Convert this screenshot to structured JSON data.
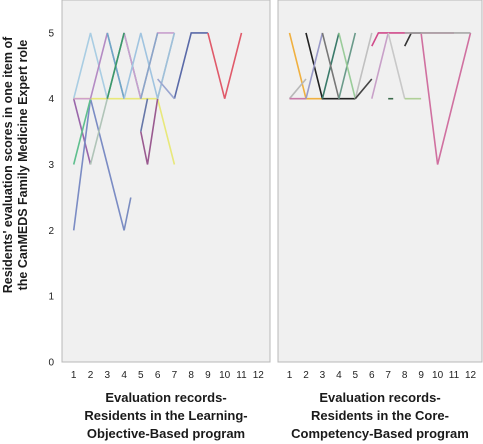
{
  "ylabel_lines": [
    "Residents' evaluation scores in one item of",
    "the CanMEDS Family Medicine Expert role"
  ],
  "chart_data": [
    {
      "type": "line",
      "panel_title_lines": [
        "Evaluation records-",
        "Residents in the Learning-",
        "Objective-Based program"
      ],
      "x_ticks": [
        1,
        2,
        3,
        4,
        5,
        6,
        7,
        8,
        9,
        10,
        11,
        12
      ],
      "y_ticks": [
        0,
        1,
        2,
        3,
        4,
        5
      ],
      "xlim": [
        0.3,
        12.7
      ],
      "ylim": [
        0,
        5.5
      ],
      "grid": false,
      "series": [
        {
          "color": "#a9cde3",
          "x": [
            1,
            2,
            3
          ],
          "y": [
            4,
            5,
            4
          ]
        },
        {
          "color": "#9966aa",
          "x": [
            1,
            2
          ],
          "y": [
            4,
            3
          ]
        },
        {
          "color": "#7b8cc4",
          "x": [
            1,
            2,
            3,
            4
          ],
          "y": [
            2,
            4,
            3,
            2
          ]
        },
        {
          "color": "#5fbf8e",
          "x": [
            1,
            2
          ],
          "y": [
            3,
            4
          ]
        },
        {
          "color": "#e8e87a",
          "x": [
            1,
            2,
            3,
            4,
            5,
            6,
            7
          ],
          "y": [
            4,
            4,
            4,
            4,
            4,
            4,
            3
          ]
        },
        {
          "color": "#cfa0c8",
          "x": [
            1,
            2
          ],
          "y": [
            4,
            4
          ]
        },
        {
          "color": "#b48bc4",
          "x": [
            2,
            3,
            4
          ],
          "y": [
            4,
            5,
            4
          ]
        },
        {
          "color": "#b0c4b8",
          "x": [
            2,
            3
          ],
          "y": [
            3,
            4
          ]
        },
        {
          "color": "#6fb8b0",
          "x": [
            3,
            4,
            5
          ],
          "y": [
            4,
            5,
            4
          ]
        },
        {
          "color": "#c8a0ce",
          "x": [
            3,
            4,
            5,
            6,
            7
          ],
          "y": [
            4,
            5,
            4,
            5,
            5
          ]
        },
        {
          "color": "#6fa8c8",
          "x": [
            3,
            4
          ],
          "y": [
            5,
            4
          ]
        },
        {
          "color": "#7a8cc0",
          "x": [
            4,
            4.4
          ],
          "y": [
            2,
            2.5
          ]
        },
        {
          "color": "#3a9a6a",
          "x": [
            3,
            4
          ],
          "y": [
            4,
            5
          ]
        },
        {
          "color": "#6677a8",
          "x": [
            5,
            5.4
          ],
          "y": [
            3.5,
            4
          ]
        },
        {
          "color": "#9a5a90",
          "x": [
            5,
            5.4,
            6
          ],
          "y": [
            3.5,
            3,
            4
          ]
        },
        {
          "color": "#a0c4e0",
          "x": [
            4,
            5,
            6,
            7
          ],
          "y": [
            4,
            5,
            4,
            5
          ]
        },
        {
          "color": "#8aa6c8",
          "x": [
            5,
            6
          ],
          "y": [
            4,
            5
          ]
        },
        {
          "color": "#5a6aa8",
          "x": [
            7,
            8,
            9
          ],
          "y": [
            4,
            5,
            5
          ]
        },
        {
          "color": "#a0c0d8",
          "x": [
            6,
            7
          ],
          "y": [
            4,
            5
          ]
        },
        {
          "color": "#9aa6d0",
          "x": [
            6,
            7
          ],
          "y": [
            4.3,
            4
          ]
        },
        {
          "color": "#e05a6a",
          "x": [
            9,
            10,
            11
          ],
          "y": [
            5,
            4,
            5
          ]
        }
      ]
    },
    {
      "type": "line",
      "panel_title_lines": [
        "Evaluation records-",
        "Residents in the Core-",
        "Competency-Based program"
      ],
      "x_ticks": [
        1,
        2,
        3,
        4,
        5,
        6,
        7,
        8,
        9,
        10,
        11,
        12
      ],
      "y_ticks": [
        0,
        1,
        2,
        3,
        4,
        5
      ],
      "xlim": [
        0.3,
        12.7
      ],
      "ylim": [
        0,
        5.5
      ],
      "grid": false,
      "series": [
        {
          "color": "#f0b040",
          "x": [
            1,
            2,
            3
          ],
          "y": [
            5,
            4,
            4
          ]
        },
        {
          "color": "#b8b8b8",
          "x": [
            1,
            2
          ],
          "y": [
            4,
            4.3
          ]
        },
        {
          "color": "#c87aa8",
          "x": [
            1,
            2
          ],
          "y": [
            4,
            4
          ]
        },
        {
          "color": "#222222",
          "x": [
            2,
            3,
            4,
            5
          ],
          "y": [
            5,
            4,
            4,
            4
          ]
        },
        {
          "color": "#9a9ac8",
          "x": [
            2,
            3
          ],
          "y": [
            4,
            5
          ]
        },
        {
          "color": "#3a7a6a",
          "x": [
            3,
            4
          ],
          "y": [
            4,
            5
          ]
        },
        {
          "color": "#777777",
          "x": [
            3,
            4
          ],
          "y": [
            5,
            4
          ]
        },
        {
          "color": "#6a9a8a",
          "x": [
            4,
            5
          ],
          "y": [
            4,
            5
          ]
        },
        {
          "color": "#9acc9a",
          "x": [
            4,
            5
          ],
          "y": [
            5,
            4
          ]
        },
        {
          "color": "#c0c0c0",
          "x": [
            5,
            6
          ],
          "y": [
            4,
            5
          ]
        },
        {
          "color": "#444444",
          "x": [
            5,
            6
          ],
          "y": [
            4,
            4.3
          ]
        },
        {
          "color": "#c8a0c8",
          "x": [
            6,
            7
          ],
          "y": [
            4,
            5
          ]
        },
        {
          "color": "#d04a8a",
          "x": [
            6,
            6.4,
            7,
            8,
            9,
            10,
            11
          ],
          "y": [
            4.8,
            5,
            5,
            5,
            5,
            5,
            5
          ]
        },
        {
          "color": "#3a6a4a",
          "x": [
            7,
            7.3
          ],
          "y": [
            4,
            4
          ]
        },
        {
          "color": "#c8c8c8",
          "x": [
            7,
            8
          ],
          "y": [
            5,
            4
          ]
        },
        {
          "color": "#333333",
          "x": [
            8,
            8.4,
            9
          ],
          "y": [
            4.8,
            5,
            5
          ]
        },
        {
          "color": "#b0d098",
          "x": [
            8,
            9
          ],
          "y": [
            4,
            4
          ]
        },
        {
          "color": "#d070a0",
          "x": [
            9,
            10,
            11,
            12
          ],
          "y": [
            5,
            3,
            4,
            5
          ]
        },
        {
          "color": "#a8a8a8",
          "x": [
            8,
            9,
            10,
            11,
            12
          ],
          "y": [
            5,
            5,
            5,
            5,
            5
          ]
        }
      ]
    }
  ]
}
